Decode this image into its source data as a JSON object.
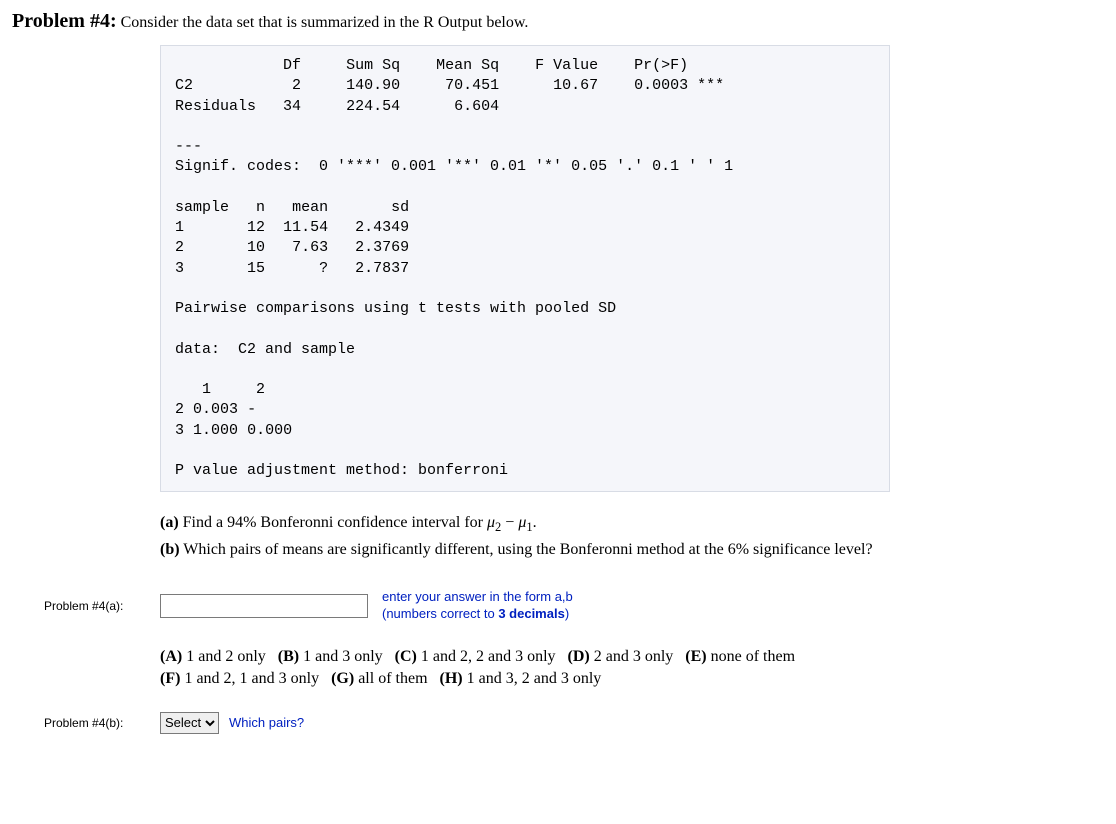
{
  "heading": {
    "title": "Problem #4:",
    "intro": "Consider the data set that is summarized in the R Output below."
  },
  "r_output": {
    "font_family": "Courier New",
    "font_size_pt": 11,
    "bg_color": "#f5f6fa",
    "border_color": "#d8dce5",
    "anova": {
      "headers": [
        "",
        "Df",
        "Sum Sq",
        "Mean Sq",
        "F Value",
        "Pr(>F)"
      ],
      "rows": [
        {
          "label": "C2",
          "Df": "2",
          "SumSq": "140.90",
          "MeanSq": "70.451",
          "F": "10.67",
          "Pr": "0.0003 ***"
        },
        {
          "label": "Residuals",
          "Df": "34",
          "SumSq": "224.54",
          "MeanSq": "6.604",
          "F": "",
          "Pr": ""
        }
      ]
    },
    "sep": "---",
    "signif": "Signif. codes:  0 '***' 0.001 '**' 0.01 '*' 0.05 '.' 0.1 ' ' 1",
    "sample_table": {
      "headers": [
        "sample",
        "n",
        "mean",
        "sd"
      ],
      "rows": [
        [
          "1",
          "12",
          "11.54",
          "2.4349"
        ],
        [
          "2",
          "10",
          "7.63",
          "2.3769"
        ],
        [
          "3",
          "15",
          "?",
          "2.7837"
        ]
      ]
    },
    "pairwise_header": "Pairwise comparisons using t tests with pooled SD",
    "data_line": "data:  C2 and sample",
    "pmatrix": {
      "col_headers": [
        "",
        "1",
        "2"
      ],
      "rows": [
        [
          "2",
          "0.003",
          "-"
        ],
        [
          "3",
          "1.000",
          "0.000"
        ]
      ]
    },
    "adjust": "P value adjustment method: bonferroni"
  },
  "questions": {
    "a_label": "(a)",
    "a_text_pre": "Find a 94% Bonferonni confidence interval for ",
    "a_mu": "μ",
    "a_sub1": "2",
    "a_minus": " − ",
    "a_sub2": "1",
    "a_period": ".",
    "b_label": "(b)",
    "b_text": "Which pairs of means are significantly different, using the Bonferonni method at the 6% significance level?"
  },
  "answer_a": {
    "label": "Problem #4(a):",
    "value": "",
    "hint_l1": "enter your answer in the form a,b",
    "hint_l2_pre": "(numbers correct to ",
    "hint_bold": "3 decimals",
    "hint_l2_post": ")"
  },
  "choices": {
    "items": [
      {
        "letter": "(A)",
        "text": "1 and 2 only"
      },
      {
        "letter": "(B)",
        "text": "1 and 3 only"
      },
      {
        "letter": "(C)",
        "text": "1 and 2, 2 and 3 only"
      },
      {
        "letter": "(D)",
        "text": "2 and 3 only"
      },
      {
        "letter": "(E)",
        "text": "none of them"
      },
      {
        "letter": "(F)",
        "text": "1 and 2, 1 and 3 only"
      },
      {
        "letter": "(G)",
        "text": "all of them"
      },
      {
        "letter": "(H)",
        "text": "1 and 3, 2 and 3 only"
      }
    ]
  },
  "answer_b": {
    "label": "Problem #4(b):",
    "select_display": "Select",
    "hint": "Which pairs?"
  },
  "colors": {
    "text": "#000000",
    "link_blue": "#0020c0"
  }
}
